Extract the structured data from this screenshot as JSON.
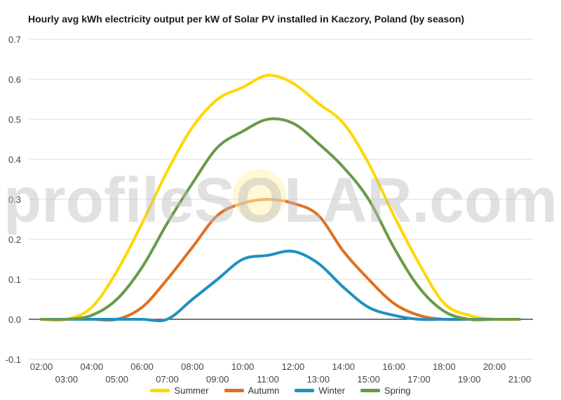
{
  "chart_data": {
    "type": "line",
    "title": "Hourly avg kWh electricity output per kW of Solar PV installed in Kaczory, Poland (by season)",
    "xlabel": "",
    "ylabel": "",
    "x": [
      "02:00",
      "03:00",
      "04:00",
      "05:00",
      "06:00",
      "07:00",
      "08:00",
      "09:00",
      "10:00",
      "11:00",
      "12:00",
      "13:00",
      "14:00",
      "15:00",
      "16:00",
      "17:00",
      "18:00",
      "19:00",
      "20:00",
      "21:00"
    ],
    "ylim": [
      -0.1,
      0.7
    ],
    "yticks": [
      -0.1,
      0.0,
      0.1,
      0.2,
      0.3,
      0.4,
      0.5,
      0.6,
      0.7
    ],
    "ytick_labels": [
      "-0.1",
      "0.0",
      "0.1",
      "0.2",
      "0.3",
      "0.4",
      "0.5",
      "0.6",
      "0.7"
    ],
    "grid": true,
    "legend_position": "bottom",
    "series": [
      {
        "name": "Summer",
        "color": "#FFD700",
        "values": [
          0.0,
          0.0,
          0.03,
          0.12,
          0.24,
          0.37,
          0.48,
          0.55,
          0.58,
          0.61,
          0.59,
          0.54,
          0.49,
          0.39,
          0.26,
          0.14,
          0.04,
          0.01,
          0.0,
          0.0
        ]
      },
      {
        "name": "Autumn",
        "color": "#E07020",
        "values": [
          0.0,
          0.0,
          0.0,
          0.0,
          0.03,
          0.1,
          0.18,
          0.26,
          0.29,
          0.3,
          0.29,
          0.26,
          0.17,
          0.1,
          0.04,
          0.01,
          0.0,
          0.0,
          0.0,
          0.0
        ]
      },
      {
        "name": "Winter",
        "color": "#2190C0",
        "values": [
          0.0,
          0.0,
          0.0,
          0.0,
          0.0,
          0.0,
          0.05,
          0.1,
          0.15,
          0.16,
          0.17,
          0.14,
          0.08,
          0.03,
          0.01,
          0.0,
          0.0,
          0.0,
          0.0,
          0.0
        ]
      },
      {
        "name": "Spring",
        "color": "#6A9A48",
        "values": [
          0.0,
          0.0,
          0.01,
          0.05,
          0.13,
          0.24,
          0.34,
          0.43,
          0.47,
          0.5,
          0.49,
          0.44,
          0.38,
          0.3,
          0.18,
          0.08,
          0.02,
          0.0,
          0.0,
          0.0
        ]
      }
    ]
  },
  "watermark": "profileSOLAR.com"
}
